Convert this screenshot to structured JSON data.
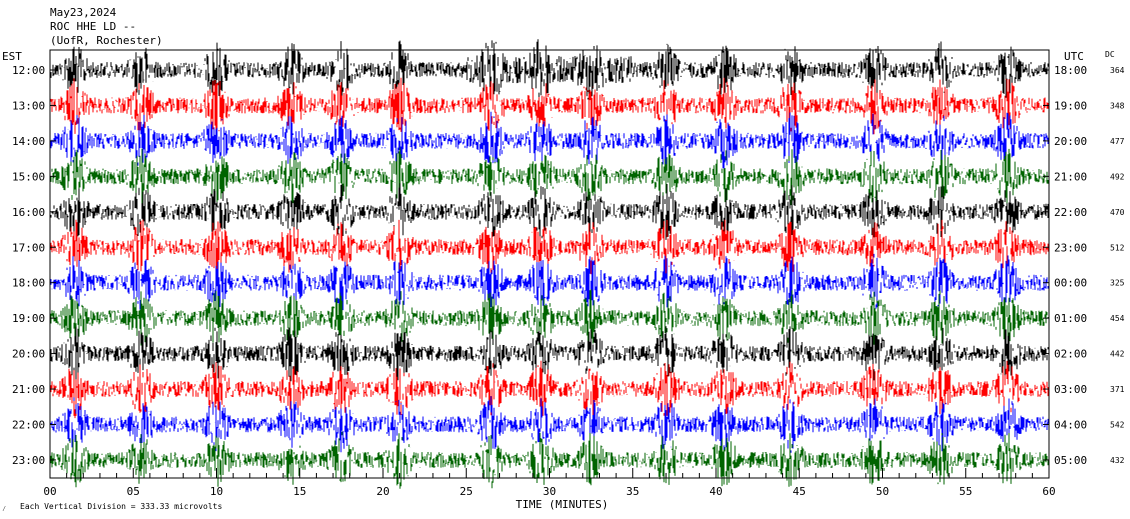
{
  "header": {
    "date": "May23,2024",
    "station": "ROC HHE LD --",
    "network": "(UofR, Rochester)"
  },
  "left_timezone": "EST",
  "right_timezone": "UTC",
  "dc_header": "DC",
  "footer": {
    "scale_mark": "⁄",
    "scale_note": "Each Vertical Division =  333.33 microvolts",
    "xlabel": "TIME (MINUTES)"
  },
  "colors": {
    "traces": [
      "#000000",
      "#ff0000",
      "#0000ff",
      "#006400"
    ],
    "frame": "#000000",
    "background": "#ffffff"
  },
  "chart_data": {
    "type": "line",
    "title": "",
    "xlabel": "TIME (MINUTES)",
    "xlim": [
      0,
      60
    ],
    "x_ticks": [
      "00",
      "05",
      "10",
      "15",
      "20",
      "25",
      "30",
      "35",
      "40",
      "45",
      "50",
      "55",
      "60"
    ],
    "rows": [
      {
        "est": "12:00",
        "utc": "18:00",
        "dc": "364",
        "color": "#000000"
      },
      {
        "est": "13:00",
        "utc": "19:00",
        "dc": "348",
        "color": "#ff0000"
      },
      {
        "est": "14:00",
        "utc": "20:00",
        "dc": "477",
        "color": "#0000ff"
      },
      {
        "est": "15:00",
        "utc": "21:00",
        "dc": "492",
        "color": "#006400"
      },
      {
        "est": "16:00",
        "utc": "22:00",
        "dc": "470",
        "color": "#000000"
      },
      {
        "est": "17:00",
        "utc": "23:00",
        "dc": "512",
        "color": "#ff0000"
      },
      {
        "est": "18:00",
        "utc": "00:00",
        "dc": "325",
        "color": "#0000ff"
      },
      {
        "est": "19:00",
        "utc": "01:00",
        "dc": "454",
        "color": "#006400"
      },
      {
        "est": "20:00",
        "utc": "02:00",
        "dc": "442",
        "color": "#000000"
      },
      {
        "est": "21:00",
        "utc": "03:00",
        "dc": "371",
        "color": "#ff0000"
      },
      {
        "est": "22:00",
        "utc": "04:00",
        "dc": "542",
        "color": "#0000ff"
      },
      {
        "est": "23:00",
        "utc": "05:00",
        "dc": "432",
        "color": "#006400"
      }
    ],
    "event_minutes": [
      1.5,
      5.5,
      10.0,
      14.5,
      17.5,
      21.0,
      26.5,
      29.5,
      32.5,
      37.0,
      40.5,
      44.5,
      49.5,
      53.5,
      57.5
    ],
    "grid": true
  }
}
